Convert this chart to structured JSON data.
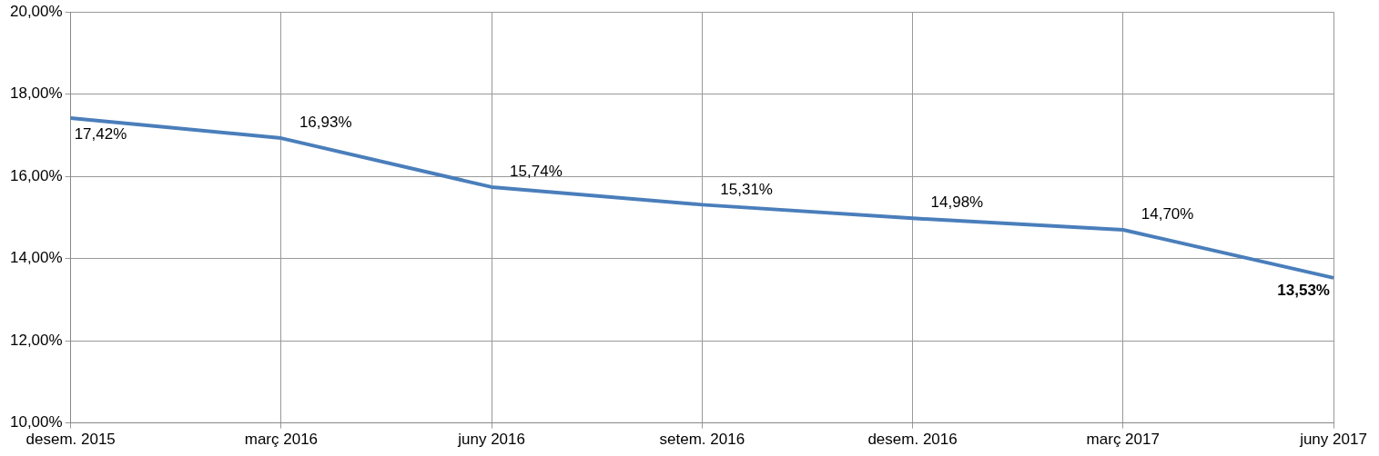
{
  "chart_data": {
    "type": "line",
    "categories": [
      "desem. 2015",
      "març 2016",
      "juny 2016",
      "setem. 2016",
      "desem. 2016",
      "març 2017",
      "juny 2017"
    ],
    "series": [
      {
        "color": "#4a7ebb",
        "values": [
          17.42,
          16.93,
          15.74,
          15.31,
          14.98,
          14.7,
          13.53
        ],
        "value_labels": [
          "17,42%",
          "16,93%",
          "15,74%",
          "15,31%",
          "14,98%",
          "14,70%",
          "13,53%"
        ]
      }
    ],
    "ylim": [
      10,
      20
    ],
    "yticks": [
      {
        "value": 10,
        "label": "10,00%"
      },
      {
        "value": 12,
        "label": "12,00%"
      },
      {
        "value": 14,
        "label": "14,00%"
      },
      {
        "value": 16,
        "label": "16,00%"
      },
      {
        "value": 18,
        "label": "18,00%"
      },
      {
        "value": 20,
        "label": "20,00%"
      }
    ],
    "grid": true,
    "legend": false,
    "marker": "none",
    "line_style": "solid"
  }
}
